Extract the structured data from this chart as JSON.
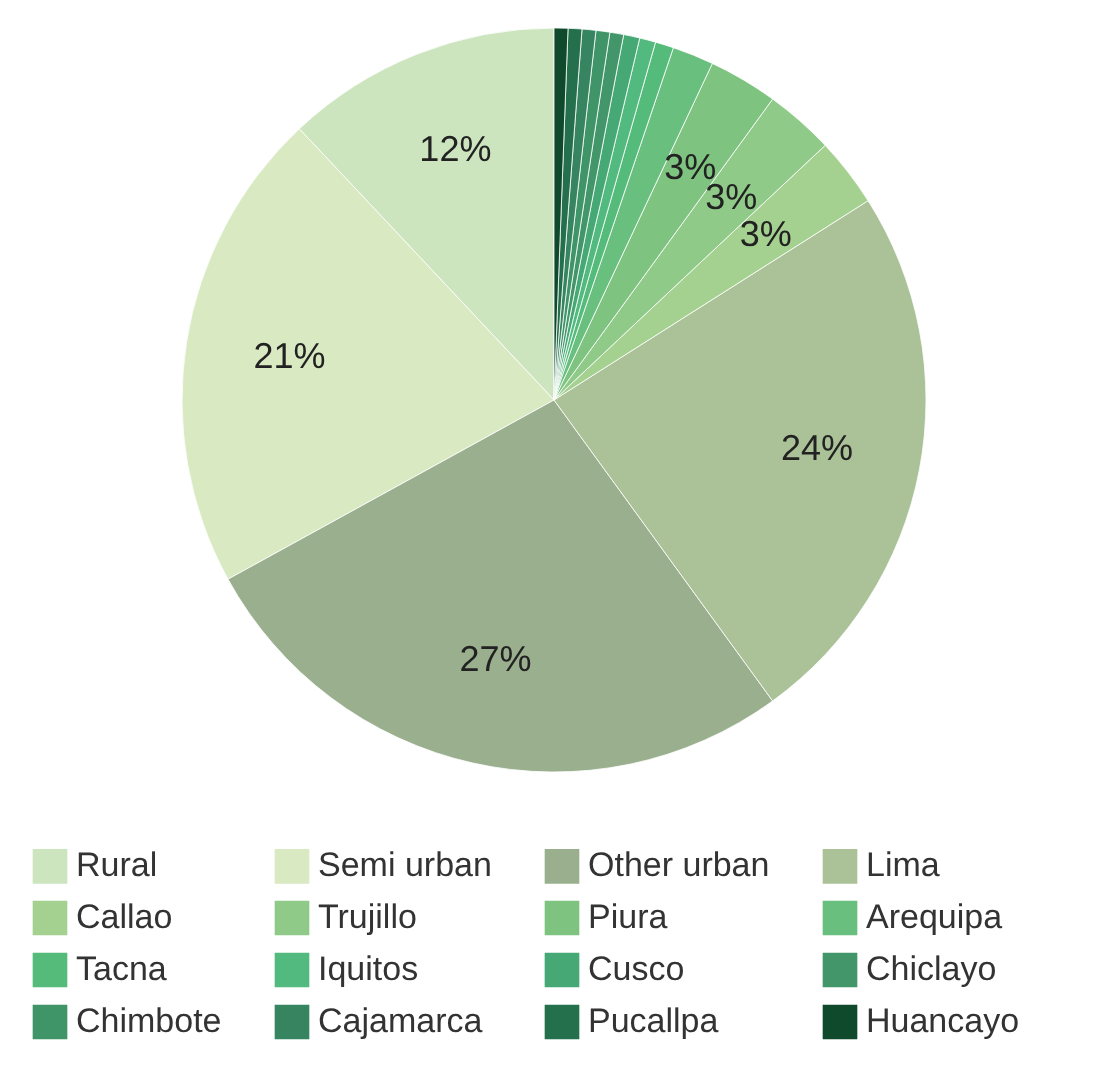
{
  "chart_data": {
    "type": "pie",
    "categories": [
      "Rural",
      "Semi urban",
      "Other urban",
      "Lima",
      "Callao",
      "Trujillo",
      "Piura",
      "Arequipa",
      "Tacna",
      "Iquitos",
      "Cusco",
      "Chiclayo",
      "Chimbote",
      "Cajamarca",
      "Pucallpa",
      "Huancayo"
    ],
    "values": [
      12,
      21,
      27,
      24,
      3,
      3,
      3,
      1.8,
      0.8,
      0.7,
      0.7,
      0.6,
      0.6,
      0.6,
      0.6,
      0.6
    ],
    "value_labels": [
      "12%",
      "21%",
      "27%",
      "24%",
      "3%",
      "3%",
      "3%",
      null,
      null,
      null,
      null,
      null,
      null,
      null,
      null,
      null
    ],
    "colors": [
      "#cce5bf",
      "#d9e9c1",
      "#9aaf8e",
      "#abc298",
      "#a5d190",
      "#8fca88",
      "#7ec380",
      "#68bf7e",
      "#55bb7b",
      "#52ba7e",
      "#46a874",
      "#43966a",
      "#3f9468",
      "#378460",
      "#246f4c",
      "#104a2c"
    ],
    "legend": "bottom"
  }
}
